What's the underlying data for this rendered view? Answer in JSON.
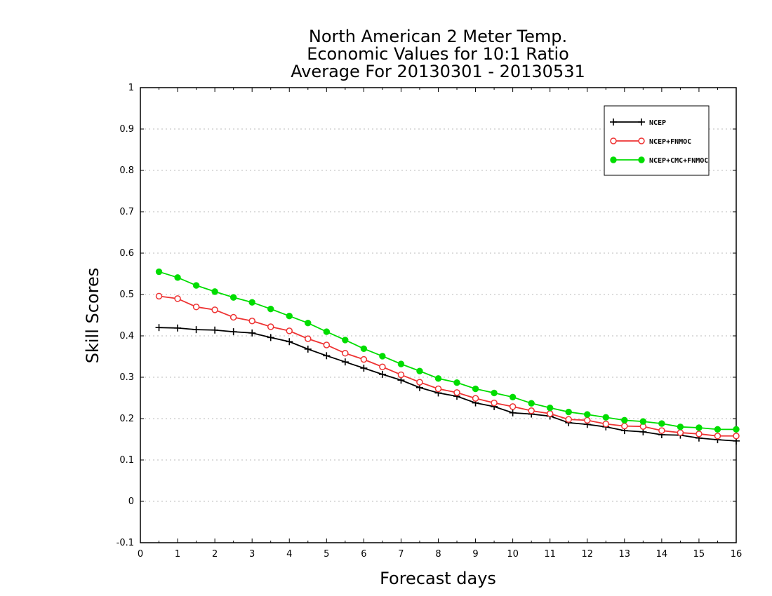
{
  "chart_data": {
    "type": "line",
    "title_lines": [
      "North American 2 Meter Temp.",
      "Economic Values for 10:1 Ratio",
      "Average For 20130301 - 20130531"
    ],
    "xlabel": "Forecast days",
    "ylabel": "Skill Scores",
    "xlim": [
      0,
      16
    ],
    "ylim": [
      -0.1,
      1
    ],
    "x_ticks": [
      0,
      1,
      2,
      3,
      4,
      5,
      6,
      7,
      8,
      9,
      10,
      11,
      12,
      13,
      14,
      15,
      16
    ],
    "x_tick_labels": [
      "0",
      "1",
      "2",
      "3",
      "4",
      "5",
      "6",
      "7",
      "8",
      "9",
      "10",
      "11",
      "12",
      "13",
      "14",
      "15",
      "16"
    ],
    "y_ticks": [
      -0.1,
      0,
      0.1,
      0.2,
      0.3,
      0.4,
      0.5,
      0.6,
      0.7,
      0.8,
      0.9,
      1
    ],
    "y_tick_labels": [
      "-0.1",
      "0",
      "0.1",
      "0.2",
      "0.3",
      "0.4",
      "0.5",
      "0.6",
      "0.7",
      "0.8",
      "0.9",
      "1"
    ],
    "grid": "horizontal-dotted",
    "legend_position": "top-right",
    "x": [
      0.5,
      1,
      1.5,
      2,
      2.5,
      3,
      3.5,
      4,
      4.5,
      5,
      5.5,
      6,
      6.5,
      7,
      7.5,
      8,
      8.5,
      9,
      9.5,
      10,
      10.5,
      11,
      11.5,
      12,
      12.5,
      13,
      13.5,
      14,
      14.5,
      15,
      15.5,
      16
    ],
    "series": [
      {
        "name": "NCEP",
        "color": "#000000",
        "marker": "plus",
        "values": [
          0.42,
          0.419,
          0.415,
          0.414,
          0.41,
          0.407,
          0.396,
          0.386,
          0.368,
          0.352,
          0.337,
          0.322,
          0.307,
          0.293,
          0.275,
          0.262,
          0.254,
          0.238,
          0.229,
          0.214,
          0.211,
          0.206,
          0.19,
          0.186,
          0.18,
          0.171,
          0.168,
          0.161,
          0.16,
          0.153,
          0.149,
          0.146
        ]
      },
      {
        "name": "NCEP+FNMOC",
        "color": "#ee3333",
        "marker": "open-circle",
        "values": [
          0.496,
          0.49,
          0.47,
          0.463,
          0.445,
          0.436,
          0.422,
          0.412,
          0.393,
          0.378,
          0.358,
          0.343,
          0.325,
          0.306,
          0.288,
          0.272,
          0.263,
          0.249,
          0.238,
          0.229,
          0.219,
          0.212,
          0.198,
          0.196,
          0.187,
          0.182,
          0.181,
          0.171,
          0.166,
          0.163,
          0.158,
          0.158
        ]
      },
      {
        "name": "NCEP+CMC+FNMOC",
        "color": "#00dd00",
        "marker": "filled-circle",
        "values": [
          0.555,
          0.541,
          0.522,
          0.507,
          0.493,
          0.481,
          0.465,
          0.448,
          0.431,
          0.41,
          0.39,
          0.369,
          0.351,
          0.332,
          0.315,
          0.297,
          0.287,
          0.272,
          0.262,
          0.252,
          0.237,
          0.226,
          0.216,
          0.21,
          0.203,
          0.196,
          0.193,
          0.188,
          0.18,
          0.178,
          0.174,
          0.174
        ]
      }
    ]
  }
}
